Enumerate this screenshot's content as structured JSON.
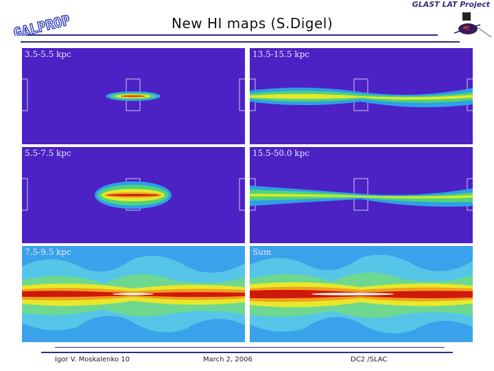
{
  "header": {
    "title": "New HI maps (S.Digel)",
    "logo_left_text": "GALPROP",
    "logo_right_text": "GLAST LAT Project"
  },
  "panels": [
    {
      "label": "3.5-5.5 kpc"
    },
    {
      "label": "13.5-15.5 kpc"
    },
    {
      "label": "5.5-7.5 kpc"
    },
    {
      "label": "15.5-50.0 kpc"
    },
    {
      "label": "7.5-9.5 kpc"
    },
    {
      "label": "Sum"
    }
  ],
  "footer": {
    "author": "Igor V. Moskalenko  10",
    "date": "March 2, 2006",
    "venue": "DC2 /SLAC"
  },
  "colors": {
    "map_background": "#4c22c4",
    "rule": "#2a2a8a"
  }
}
